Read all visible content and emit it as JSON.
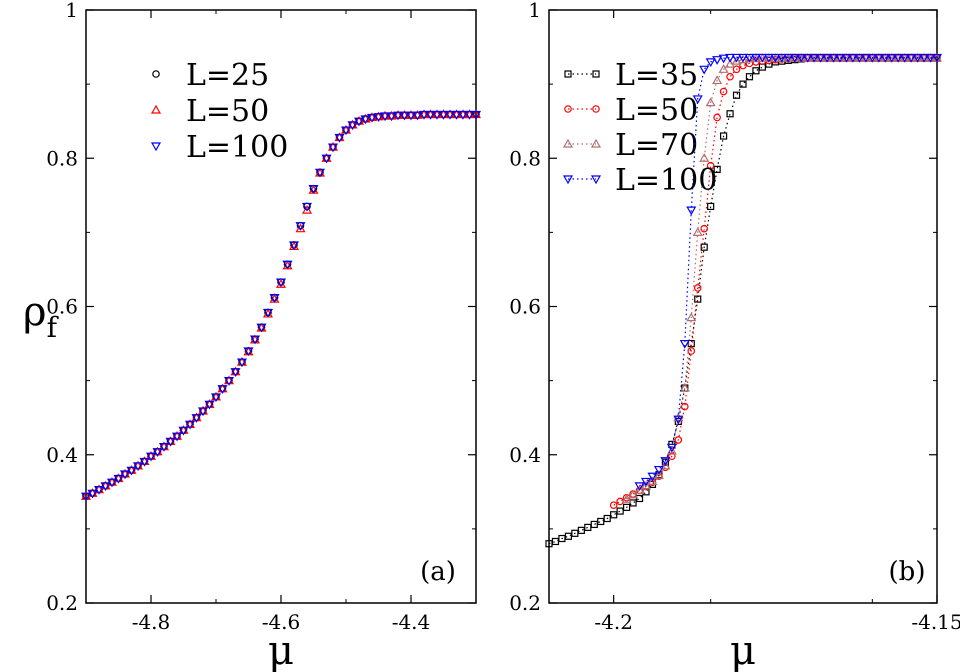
{
  "ylabel": "ρ",
  "ylabel_subscript": "f",
  "chart_data": [
    {
      "type": "scatter",
      "panel_label": "(a)",
      "xlabel": "μ",
      "xlim": [
        -4.9,
        -4.3
      ],
      "ylim": [
        0.2,
        1.0
      ],
      "xticks": [
        -4.8,
        -4.6,
        -4.4
      ],
      "yticks": [
        0.2,
        0.4,
        0.6,
        0.8,
        1.0
      ],
      "xtick_labels": [
        "-4.8",
        "-4.6",
        "-4.4"
      ],
      "ytick_labels": [
        "0.2",
        "0.4",
        "0.6",
        "0.8",
        "1"
      ],
      "legend_position": "top-left",
      "series": [
        {
          "name": "L=25",
          "marker": "circle",
          "color": "#000000",
          "line": false,
          "x": [
            -4.9,
            -4.89,
            -4.88,
            -4.87,
            -4.86,
            -4.85,
            -4.84,
            -4.83,
            -4.82,
            -4.81,
            -4.8,
            -4.79,
            -4.78,
            -4.77,
            -4.76,
            -4.75,
            -4.74,
            -4.73,
            -4.72,
            -4.71,
            -4.7,
            -4.69,
            -4.68,
            -4.67,
            -4.66,
            -4.65,
            -4.64,
            -4.63,
            -4.62,
            -4.61,
            -4.6,
            -4.59,
            -4.58,
            -4.57,
            -4.56,
            -4.55,
            -4.54,
            -4.53,
            -4.52,
            -4.51,
            -4.5,
            -4.49,
            -4.48,
            -4.47,
            -4.46,
            -4.45,
            -4.44,
            -4.43,
            -4.42,
            -4.41,
            -4.4,
            -4.39,
            -4.38,
            -4.37,
            -4.36,
            -4.35,
            -4.34,
            -4.33,
            -4.32,
            -4.31,
            -4.3
          ],
          "y": [
            0.344,
            0.348,
            0.353,
            0.358,
            0.363,
            0.368,
            0.374,
            0.379,
            0.385,
            0.391,
            0.398,
            0.404,
            0.411,
            0.418,
            0.425,
            0.433,
            0.441,
            0.45,
            0.459,
            0.468,
            0.478,
            0.489,
            0.5,
            0.512,
            0.525,
            0.54,
            0.556,
            0.572,
            0.592,
            0.612,
            0.633,
            0.657,
            0.683,
            0.709,
            0.735,
            0.759,
            0.781,
            0.8,
            0.815,
            0.828,
            0.838,
            0.845,
            0.85,
            0.853,
            0.855,
            0.856,
            0.857,
            0.857,
            0.858,
            0.858,
            0.858,
            0.858,
            0.859,
            0.859,
            0.859,
            0.859,
            0.859,
            0.859,
            0.859,
            0.859,
            0.859
          ]
        },
        {
          "name": "L=50",
          "marker": "triangle-up",
          "color": "#ff0000",
          "line": false,
          "x": [
            -4.9,
            -4.89,
            -4.88,
            -4.87,
            -4.86,
            -4.85,
            -4.84,
            -4.83,
            -4.82,
            -4.81,
            -4.8,
            -4.79,
            -4.78,
            -4.77,
            -4.76,
            -4.75,
            -4.74,
            -4.73,
            -4.72,
            -4.71,
            -4.7,
            -4.69,
            -4.68,
            -4.67,
            -4.66,
            -4.65,
            -4.64,
            -4.63,
            -4.62,
            -4.61,
            -4.6,
            -4.59,
            -4.58,
            -4.57,
            -4.56,
            -4.55,
            -4.54,
            -4.53,
            -4.52,
            -4.51,
            -4.5,
            -4.49,
            -4.48,
            -4.47,
            -4.46,
            -4.45,
            -4.44,
            -4.43,
            -4.42,
            -4.41,
            -4.4,
            -4.39,
            -4.38,
            -4.37,
            -4.36,
            -4.35,
            -4.34,
            -4.33,
            -4.32,
            -4.31,
            -4.3
          ],
          "y": [
            0.344,
            0.348,
            0.353,
            0.358,
            0.363,
            0.368,
            0.374,
            0.379,
            0.385,
            0.391,
            0.398,
            0.404,
            0.411,
            0.418,
            0.425,
            0.433,
            0.441,
            0.45,
            0.459,
            0.468,
            0.478,
            0.489,
            0.5,
            0.512,
            0.525,
            0.539,
            0.555,
            0.571,
            0.59,
            0.61,
            0.63,
            0.655,
            0.681,
            0.705,
            0.73,
            0.757,
            0.78,
            0.8,
            0.815,
            0.828,
            0.838,
            0.845,
            0.85,
            0.853,
            0.855,
            0.856,
            0.857,
            0.857,
            0.858,
            0.858,
            0.858,
            0.858,
            0.859,
            0.859,
            0.859,
            0.859,
            0.859,
            0.859,
            0.859,
            0.859,
            0.859
          ]
        },
        {
          "name": "L=100",
          "marker": "triangle-down",
          "color": "#0000ff",
          "line": false,
          "x": [
            -4.9,
            -4.89,
            -4.88,
            -4.87,
            -4.86,
            -4.85,
            -4.84,
            -4.83,
            -4.82,
            -4.81,
            -4.8,
            -4.79,
            -4.78,
            -4.77,
            -4.76,
            -4.75,
            -4.74,
            -4.73,
            -4.72,
            -4.71,
            -4.7,
            -4.69,
            -4.68,
            -4.67,
            -4.66,
            -4.65,
            -4.64,
            -4.63,
            -4.62,
            -4.61,
            -4.6,
            -4.59,
            -4.58,
            -4.57,
            -4.56,
            -4.55,
            -4.54,
            -4.53,
            -4.52,
            -4.51,
            -4.5,
            -4.49,
            -4.48,
            -4.47,
            -4.46,
            -4.45,
            -4.44,
            -4.43,
            -4.42,
            -4.41,
            -4.4,
            -4.39,
            -4.38,
            -4.37,
            -4.36,
            -4.35,
            -4.34,
            -4.33,
            -4.32,
            -4.31,
            -4.3
          ],
          "y": [
            0.344,
            0.348,
            0.353,
            0.358,
            0.363,
            0.368,
            0.374,
            0.379,
            0.385,
            0.391,
            0.398,
            0.404,
            0.411,
            0.418,
            0.425,
            0.433,
            0.441,
            0.45,
            0.459,
            0.468,
            0.478,
            0.489,
            0.5,
            0.512,
            0.525,
            0.54,
            0.556,
            0.572,
            0.592,
            0.612,
            0.633,
            0.657,
            0.683,
            0.709,
            0.735,
            0.759,
            0.781,
            0.8,
            0.815,
            0.828,
            0.838,
            0.845,
            0.85,
            0.853,
            0.855,
            0.856,
            0.857,
            0.857,
            0.858,
            0.858,
            0.858,
            0.858,
            0.859,
            0.859,
            0.859,
            0.859,
            0.859,
            0.859,
            0.859,
            0.859,
            0.859
          ]
        }
      ]
    },
    {
      "type": "line",
      "panel_label": "(b)",
      "xlabel": "μ",
      "xlim": [
        -4.21,
        -4.15
      ],
      "ylim": [
        0.2,
        1.0
      ],
      "xticks": [
        -4.2,
        -4.15
      ],
      "yticks": [
        0.2,
        0.4,
        0.6,
        0.8,
        1.0
      ],
      "xtick_labels": [
        "-4.2",
        "-4.15"
      ],
      "ytick_labels": [
        "0.2",
        "0.4",
        "0.6",
        "0.8",
        "1"
      ],
      "legend_position": "top-left",
      "series": [
        {
          "name": "L=35",
          "marker": "square",
          "color": "#000000",
          "line": true,
          "x": [
            -4.21,
            -4.209,
            -4.208,
            -4.207,
            -4.206,
            -4.205,
            -4.204,
            -4.203,
            -4.202,
            -4.201,
            -4.2,
            -4.199,
            -4.198,
            -4.197,
            -4.196,
            -4.195,
            -4.194,
            -4.193,
            -4.192,
            -4.191,
            -4.19,
            -4.189,
            -4.188,
            -4.187,
            -4.186,
            -4.185,
            -4.184,
            -4.183,
            -4.182,
            -4.181,
            -4.18,
            -4.179,
            -4.178,
            -4.177,
            -4.176,
            -4.175,
            -4.174,
            -4.173,
            -4.172,
            -4.171,
            -4.17,
            -4.169,
            -4.168,
            -4.167,
            -4.166,
            -4.165,
            -4.164,
            -4.163,
            -4.162,
            -4.161,
            -4.16,
            -4.159,
            -4.158,
            -4.157,
            -4.156,
            -4.155,
            -4.154,
            -4.153,
            -4.152,
            -4.151,
            -4.15
          ],
          "y": [
            0.28,
            0.283,
            0.287,
            0.29,
            0.294,
            0.298,
            0.302,
            0.306,
            0.31,
            0.314,
            0.319,
            0.324,
            0.329,
            0.335,
            0.341,
            0.35,
            0.36,
            0.373,
            0.39,
            0.414,
            0.445,
            0.49,
            0.55,
            0.61,
            0.68,
            0.735,
            0.785,
            0.83,
            0.86,
            0.885,
            0.9,
            0.91,
            0.918,
            0.923,
            0.927,
            0.93,
            0.931,
            0.932,
            0.933,
            0.934,
            0.935,
            0.935,
            0.935,
            0.935,
            0.935,
            0.935,
            0.935,
            0.935,
            0.935,
            0.935,
            0.935,
            0.935,
            0.935,
            0.935,
            0.935,
            0.935,
            0.935,
            0.935,
            0.935,
            0.935,
            0.935
          ]
        },
        {
          "name": "L=50",
          "marker": "circle",
          "color": "#ff0000",
          "line": true,
          "x": [
            -4.2,
            -4.199,
            -4.198,
            -4.197,
            -4.196,
            -4.195,
            -4.194,
            -4.193,
            -4.192,
            -4.191,
            -4.19,
            -4.189,
            -4.188,
            -4.187,
            -4.186,
            -4.185,
            -4.184,
            -4.183,
            -4.182,
            -4.181,
            -4.18,
            -4.179,
            -4.178,
            -4.177,
            -4.176,
            -4.175,
            -4.174,
            -4.173,
            -4.172,
            -4.171,
            -4.17,
            -4.169,
            -4.168,
            -4.167,
            -4.166,
            -4.165,
            -4.164,
            -4.163,
            -4.162,
            -4.161,
            -4.16,
            -4.159,
            -4.158,
            -4.157,
            -4.156,
            -4.155,
            -4.154,
            -4.153,
            -4.152,
            -4.151,
            -4.15
          ],
          "y": [
            0.332,
            0.337,
            0.342,
            0.347,
            0.352,
            0.357,
            0.363,
            0.371,
            0.383,
            0.398,
            0.42,
            0.465,
            0.54,
            0.625,
            0.705,
            0.79,
            0.855,
            0.89,
            0.91,
            0.92,
            0.925,
            0.928,
            0.93,
            0.931,
            0.932,
            0.933,
            0.934,
            0.934,
            0.935,
            0.935,
            0.935,
            0.935,
            0.935,
            0.935,
            0.935,
            0.935,
            0.935,
            0.935,
            0.935,
            0.935,
            0.935,
            0.935,
            0.935,
            0.935,
            0.935,
            0.935,
            0.935,
            0.935,
            0.935,
            0.935,
            0.935
          ]
        },
        {
          "name": "L=70",
          "marker": "triangle-up",
          "color": "#b07070",
          "line": true,
          "x": [
            -4.198,
            -4.197,
            -4.196,
            -4.195,
            -4.194,
            -4.193,
            -4.192,
            -4.191,
            -4.19,
            -4.189,
            -4.188,
            -4.187,
            -4.186,
            -4.185,
            -4.184,
            -4.183,
            -4.182,
            -4.181,
            -4.18,
            -4.179,
            -4.178,
            -4.177,
            -4.176,
            -4.175,
            -4.174,
            -4.173,
            -4.172,
            -4.171,
            -4.17,
            -4.169,
            -4.168,
            -4.167,
            -4.166,
            -4.165,
            -4.164,
            -4.163,
            -4.162,
            -4.161,
            -4.16,
            -4.159,
            -4.158,
            -4.157,
            -4.156,
            -4.155,
            -4.154,
            -4.153,
            -4.152,
            -4.151,
            -4.15
          ],
          "y": [
            0.34,
            0.346,
            0.352,
            0.358,
            0.364,
            0.372,
            0.385,
            0.405,
            0.45,
            0.49,
            0.585,
            0.7,
            0.8,
            0.875,
            0.905,
            0.92,
            0.927,
            0.931,
            0.933,
            0.934,
            0.935,
            0.935,
            0.935,
            0.935,
            0.935,
            0.935,
            0.935,
            0.935,
            0.935,
            0.935,
            0.935,
            0.935,
            0.935,
            0.935,
            0.935,
            0.935,
            0.935,
            0.935,
            0.935,
            0.935,
            0.935,
            0.935,
            0.935,
            0.935,
            0.935,
            0.935,
            0.935,
            0.935,
            0.935
          ]
        },
        {
          "name": "L=100",
          "marker": "triangle-down",
          "color": "#0000ff",
          "line": true,
          "x": [
            -4.196,
            -4.195,
            -4.194,
            -4.193,
            -4.192,
            -4.191,
            -4.19,
            -4.189,
            -4.188,
            -4.187,
            -4.186,
            -4.185,
            -4.184,
            -4.183,
            -4.182,
            -4.181,
            -4.18,
            -4.179,
            -4.178,
            -4.177,
            -4.176,
            -4.175,
            -4.174,
            -4.173,
            -4.172,
            -4.171,
            -4.17,
            -4.169,
            -4.168,
            -4.167,
            -4.166,
            -4.165,
            -4.164,
            -4.163,
            -4.162,
            -4.161,
            -4.16,
            -4.159,
            -4.158,
            -4.157,
            -4.156,
            -4.155,
            -4.154,
            -4.153,
            -4.152,
            -4.151,
            -4.15
          ],
          "y": [
            0.358,
            0.364,
            0.371,
            0.38,
            0.392,
            0.41,
            0.448,
            0.55,
            0.73,
            0.88,
            0.92,
            0.93,
            0.933,
            0.935,
            0.936,
            0.936,
            0.936,
            0.936,
            0.936,
            0.936,
            0.936,
            0.936,
            0.936,
            0.936,
            0.936,
            0.936,
            0.936,
            0.936,
            0.936,
            0.936,
            0.936,
            0.936,
            0.936,
            0.936,
            0.936,
            0.936,
            0.936,
            0.936,
            0.936,
            0.936,
            0.936,
            0.936,
            0.936,
            0.936,
            0.936,
            0.936,
            0.936
          ]
        }
      ]
    }
  ]
}
